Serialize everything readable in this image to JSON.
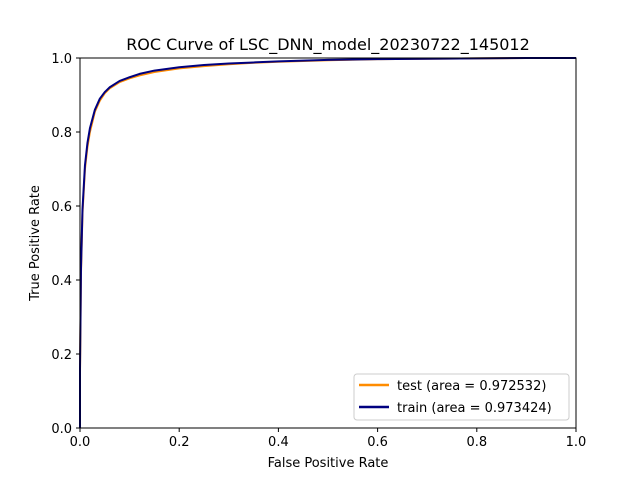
{
  "chart_data": {
    "type": "line",
    "title": "ROC Curve of LSC_DNN_model_20230722_145012",
    "xlabel": "False Positive Rate",
    "ylabel": "True Positive Rate",
    "xlim": [
      0.0,
      1.0
    ],
    "ylim": [
      0.0,
      1.0
    ],
    "xticks": [
      "0.0",
      "0.2",
      "0.4",
      "0.6",
      "0.8",
      "1.0"
    ],
    "yticks": [
      "0.0",
      "0.2",
      "0.4",
      "0.6",
      "0.8",
      "1.0"
    ],
    "grid": false,
    "legend_position": "lower right",
    "series": [
      {
        "name": "test (area = 0.972532)",
        "color": "#ff8c00",
        "x": [
          0.0,
          0.0,
          0.002,
          0.005,
          0.01,
          0.015,
          0.02,
          0.03,
          0.04,
          0.05,
          0.06,
          0.08,
          0.1,
          0.12,
          0.15,
          0.2,
          0.25,
          0.3,
          0.35,
          0.4,
          0.5,
          0.6,
          0.7,
          0.8,
          0.9,
          1.0
        ],
        "y": [
          0.0,
          0.15,
          0.42,
          0.58,
          0.7,
          0.76,
          0.8,
          0.855,
          0.885,
          0.905,
          0.918,
          0.935,
          0.945,
          0.953,
          0.962,
          0.972,
          0.978,
          0.983,
          0.987,
          0.99,
          0.994,
          0.997,
          0.998,
          0.999,
          1.0,
          1.0
        ]
      },
      {
        "name": "train (area = 0.973424)",
        "color": "#000080",
        "x": [
          0.0,
          0.0,
          0.002,
          0.005,
          0.01,
          0.015,
          0.02,
          0.03,
          0.04,
          0.05,
          0.06,
          0.08,
          0.1,
          0.12,
          0.15,
          0.2,
          0.25,
          0.3,
          0.35,
          0.4,
          0.5,
          0.6,
          0.7,
          0.8,
          0.9,
          1.0
        ],
        "y": [
          0.0,
          0.16,
          0.43,
          0.59,
          0.71,
          0.77,
          0.81,
          0.86,
          0.89,
          0.908,
          0.921,
          0.938,
          0.948,
          0.957,
          0.966,
          0.975,
          0.981,
          0.985,
          0.988,
          0.991,
          0.995,
          0.997,
          0.998,
          0.999,
          1.0,
          1.0
        ]
      }
    ]
  }
}
